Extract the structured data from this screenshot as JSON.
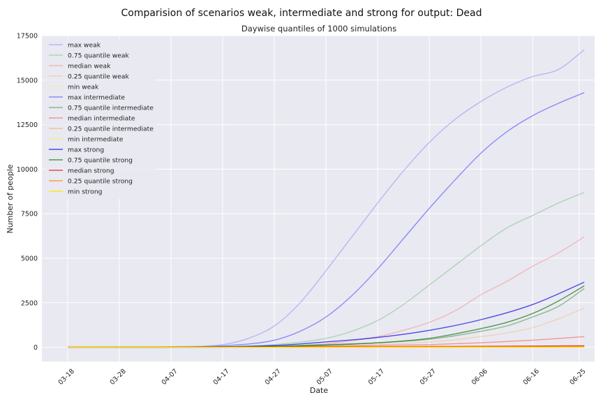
{
  "figure": {
    "suptitle": "Comparision of scenarios weak, intermediate and strong for output: Dead"
  },
  "chart_data": {
    "type": "line",
    "title": "Daywise quantiles of 1000 simulations",
    "xlabel": "Date",
    "ylabel": "Number of people",
    "xlim": [
      "2020-03-13",
      "2020-06-28"
    ],
    "ylim": [
      -800,
      17500
    ],
    "x_ticks": [
      "03-18",
      "03-28",
      "04-07",
      "04-17",
      "04-27",
      "05-07",
      "05-17",
      "05-27",
      "06-06",
      "06-16",
      "06-25"
    ],
    "y_ticks": [
      0,
      2500,
      5000,
      7500,
      10000,
      12500,
      15000,
      17500
    ],
    "grid": true,
    "legend_position": "upper-left",
    "background": "#e9e9f1",
    "series": [
      {
        "name": "max weak",
        "color": "#7b7bff",
        "opacity": 0.45,
        "x": [
          "2020-03-18",
          "2020-04-07",
          "2020-04-17",
          "2020-04-22",
          "2020-04-27",
          "2020-05-02",
          "2020-05-07",
          "2020-05-12",
          "2020-05-17",
          "2020-05-22",
          "2020-05-27",
          "2020-06-01",
          "2020-06-06",
          "2020-06-11",
          "2020-06-16",
          "2020-06-21",
          "2020-06-26"
        ],
        "y": [
          0,
          30,
          150,
          500,
          1200,
          2500,
          4300,
          6200,
          8100,
          9900,
          11500,
          12800,
          13800,
          14600,
          15200,
          15600,
          16700
        ]
      },
      {
        "name": "0.75 quantile weak",
        "color": "#2ca02c",
        "opacity": 0.3,
        "x": [
          "2020-03-18",
          "2020-04-17",
          "2020-04-27",
          "2020-05-07",
          "2020-05-12",
          "2020-05-17",
          "2020-05-22",
          "2020-05-27",
          "2020-06-01",
          "2020-06-06",
          "2020-06-11",
          "2020-06-16",
          "2020-06-21",
          "2020-06-26"
        ],
        "y": [
          0,
          20,
          150,
          500,
          900,
          1500,
          2400,
          3500,
          4600,
          5700,
          6700,
          7400,
          8100,
          8700
        ]
      },
      {
        "name": "median weak",
        "color": "#ff6b6b",
        "opacity": 0.4,
        "x": [
          "2020-03-18",
          "2020-04-27",
          "2020-05-07",
          "2020-05-17",
          "2020-05-22",
          "2020-05-27",
          "2020-06-01",
          "2020-06-06",
          "2020-06-11",
          "2020-06-16",
          "2020-06-21",
          "2020-06-26"
        ],
        "y": [
          0,
          60,
          200,
          600,
          950,
          1400,
          2050,
          2950,
          3700,
          4550,
          5300,
          6200
        ]
      },
      {
        "name": "0.25 quantile weak",
        "color": "#ffa64d",
        "opacity": 0.35,
        "x": [
          "2020-03-18",
          "2020-04-27",
          "2020-05-07",
          "2020-05-17",
          "2020-05-27",
          "2020-06-01",
          "2020-06-06",
          "2020-06-11",
          "2020-06-16",
          "2020-06-21",
          "2020-06-26"
        ],
        "y": [
          0,
          20,
          60,
          150,
          300,
          420,
          600,
          800,
          1100,
          1600,
          2200
        ]
      },
      {
        "name": "min weak",
        "color": "#ffe36b",
        "opacity": 0.4,
        "x": [
          "2020-03-18",
          "2020-05-07",
          "2020-06-06",
          "2020-06-26"
        ],
        "y": [
          0,
          10,
          40,
          100
        ]
      },
      {
        "name": "max intermediate",
        "color": "#4d4dff",
        "opacity": 0.6,
        "x": [
          "2020-03-18",
          "2020-04-07",
          "2020-04-17",
          "2020-04-27",
          "2020-05-02",
          "2020-05-07",
          "2020-05-12",
          "2020-05-17",
          "2020-05-22",
          "2020-05-27",
          "2020-06-01",
          "2020-06-06",
          "2020-06-11",
          "2020-06-16",
          "2020-06-21",
          "2020-06-26"
        ],
        "y": [
          0,
          15,
          80,
          400,
          900,
          1700,
          2900,
          4400,
          6100,
          7800,
          9400,
          10900,
          12100,
          13000,
          13700,
          14300
        ]
      },
      {
        "name": "0.75 quantile intermediate",
        "color": "#2a8a2a",
        "opacity": 0.5,
        "x": [
          "2020-03-18",
          "2020-04-27",
          "2020-05-07",
          "2020-05-17",
          "2020-05-27",
          "2020-06-01",
          "2020-06-06",
          "2020-06-11",
          "2020-06-16",
          "2020-06-21",
          "2020-06-26"
        ],
        "y": [
          0,
          60,
          150,
          250,
          450,
          650,
          900,
          1200,
          1700,
          2300,
          3300
        ]
      },
      {
        "name": "median intermediate",
        "color": "#ff4d4d",
        "opacity": 0.55,
        "x": [
          "2020-03-18",
          "2020-04-27",
          "2020-05-17",
          "2020-05-27",
          "2020-06-06",
          "2020-06-16",
          "2020-06-26"
        ],
        "y": [
          0,
          30,
          100,
          150,
          250,
          400,
          600
        ]
      },
      {
        "name": "0.25 quantile intermediate",
        "color": "#ff9a3a",
        "opacity": 0.5,
        "x": [
          "2020-03-18",
          "2020-05-17",
          "2020-06-26"
        ],
        "y": [
          0,
          20,
          60
        ]
      },
      {
        "name": "min intermediate",
        "color": "#ffeb3b",
        "opacity": 0.6,
        "x": [
          "2020-03-18",
          "2020-06-26"
        ],
        "y": [
          0,
          10
        ]
      },
      {
        "name": "max strong",
        "color": "#2323e6",
        "opacity": 0.8,
        "x": [
          "2020-03-18",
          "2020-04-17",
          "2020-04-27",
          "2020-05-07",
          "2020-05-17",
          "2020-05-27",
          "2020-06-06",
          "2020-06-16",
          "2020-06-26"
        ],
        "y": [
          0,
          30,
          100,
          300,
          550,
          950,
          1550,
          2400,
          3650
        ]
      },
      {
        "name": "0.75 quantile strong",
        "color": "#1f7a1f",
        "opacity": 0.75,
        "x": [
          "2020-03-18",
          "2020-04-27",
          "2020-05-07",
          "2020-05-17",
          "2020-05-27",
          "2020-06-06",
          "2020-06-11",
          "2020-06-16",
          "2020-06-21",
          "2020-06-26"
        ],
        "y": [
          0,
          40,
          120,
          250,
          500,
          1050,
          1400,
          1900,
          2600,
          3450
        ]
      },
      {
        "name": "median strong",
        "color": "#e62020",
        "opacity": 0.8,
        "x": [
          "2020-03-18",
          "2020-05-17",
          "2020-06-26"
        ],
        "y": [
          0,
          30,
          80
        ]
      },
      {
        "name": "0.25 quantile strong",
        "color": "#ff8c1a",
        "opacity": 0.8,
        "x": [
          "2020-03-18",
          "2020-06-26"
        ],
        "y": [
          0,
          20
        ]
      },
      {
        "name": "min strong",
        "color": "#ffea00",
        "opacity": 0.9,
        "x": [
          "2020-03-18",
          "2020-06-26"
        ],
        "y": [
          0,
          5
        ]
      }
    ]
  }
}
